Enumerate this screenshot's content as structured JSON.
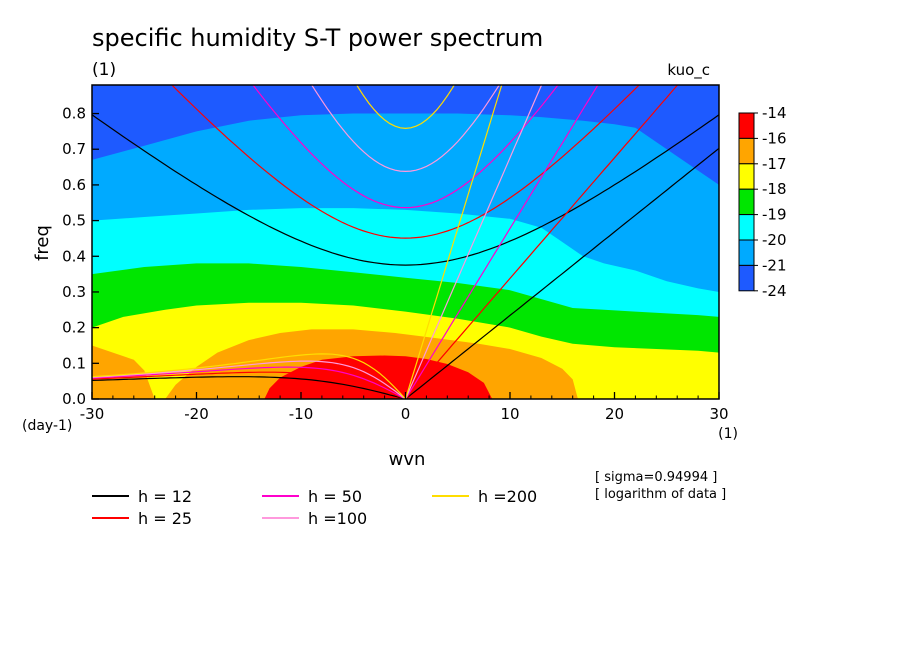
{
  "chart_data": {
    "type": "heatmap",
    "title": "specific humidity S-T power spectrum",
    "title_unit": "(1)",
    "top_right_label": "kuo_c",
    "xlabel": "wvn",
    "ylabel": "freq",
    "x_unit": "(1)",
    "y_unit": "(day-1)",
    "xlim": [
      -30,
      30
    ],
    "ylim": [
      0,
      0.88
    ],
    "x_ticks": [
      -30,
      -20,
      -10,
      0,
      10,
      20,
      30
    ],
    "x_tick_labels": [
      "-30",
      "-20",
      "-10",
      "0",
      "10",
      "20",
      "30"
    ],
    "y_ticks": [
      0,
      0.1,
      0.2,
      0.3,
      0.4,
      0.5,
      0.6,
      0.7,
      0.8
    ],
    "y_tick_labels": [
      "0.0",
      "0.1",
      "0.2",
      "0.3",
      "0.4",
      "0.5",
      "0.6",
      "0.7",
      "0.8"
    ],
    "colorbar": {
      "labels": [
        "-14",
        "-16",
        "-17",
        "-18",
        "-19",
        "-20",
        "-21",
        "-24"
      ],
      "colors": [
        "#ff0000",
        "#ffa500",
        "#ffff00",
        "#00e600",
        "#00ffff",
        "#00aaff",
        "#1e5aff"
      ]
    },
    "contour_bands": [
      {
        "level": "-24 to -21",
        "color": "#1e5aff",
        "upper_boundary": []
      },
      {
        "level": "-21 to -20",
        "color": "#00aaff",
        "upper_boundary": [
          [
            -30,
            0.67
          ],
          [
            -25,
            0.71
          ],
          [
            -20,
            0.75
          ],
          [
            -15,
            0.78
          ],
          [
            -10,
            0.795
          ],
          [
            -5,
            0.8
          ],
          [
            0,
            0.8
          ],
          [
            5,
            0.8
          ],
          [
            10,
            0.795
          ],
          [
            13,
            0.79
          ],
          [
            17,
            0.78
          ],
          [
            20,
            0.77
          ],
          [
            22,
            0.76
          ],
          [
            25,
            0.7
          ],
          [
            28,
            0.64
          ],
          [
            30,
            0.6
          ]
        ]
      },
      {
        "level": "-20 to -19",
        "color": "#00ffff",
        "upper_boundary": [
          [
            -30,
            0.5
          ],
          [
            -25,
            0.51
          ],
          [
            -20,
            0.52
          ],
          [
            -15,
            0.53
          ],
          [
            -10,
            0.535
          ],
          [
            -5,
            0.535
          ],
          [
            0,
            0.53
          ],
          [
            5,
            0.52
          ],
          [
            10,
            0.505
          ],
          [
            13,
            0.48
          ],
          [
            15,
            0.44
          ],
          [
            17,
            0.4
          ],
          [
            19,
            0.38
          ],
          [
            22,
            0.36
          ],
          [
            25,
            0.33
          ],
          [
            28,
            0.31
          ],
          [
            30,
            0.3
          ]
        ]
      },
      {
        "level": "-19 to -18",
        "color": "#00e600",
        "upper_boundary": [
          [
            -30,
            0.35
          ],
          [
            -25,
            0.37
          ],
          [
            -20,
            0.38
          ],
          [
            -15,
            0.38
          ],
          [
            -10,
            0.37
          ],
          [
            -5,
            0.355
          ],
          [
            0,
            0.34
          ],
          [
            5,
            0.325
          ],
          [
            10,
            0.305
          ],
          [
            13,
            0.28
          ],
          [
            16,
            0.255
          ],
          [
            19,
            0.25
          ],
          [
            22,
            0.245
          ],
          [
            25,
            0.24
          ],
          [
            28,
            0.235
          ],
          [
            30,
            0.23
          ]
        ]
      },
      {
        "level": "-18 to -17",
        "color": "#ffff00",
        "upper_boundary": [
          [
            -30,
            0.2
          ],
          [
            -27,
            0.23
          ],
          [
            -23,
            0.25
          ],
          [
            -20,
            0.262
          ],
          [
            -15,
            0.27
          ],
          [
            -10,
            0.27
          ],
          [
            -5,
            0.262
          ],
          [
            0,
            0.245
          ],
          [
            5,
            0.225
          ],
          [
            10,
            0.2
          ],
          [
            13,
            0.175
          ],
          [
            16,
            0.155
          ],
          [
            20,
            0.145
          ],
          [
            24,
            0.14
          ],
          [
            28,
            0.135
          ],
          [
            30,
            0.13
          ]
        ]
      },
      {
        "level": "-17 to -16",
        "color": "#ffa500",
        "upper_boundary": [
          [
            -30,
            0.15
          ],
          [
            -28,
            0.13
          ],
          [
            -26,
            0.11
          ],
          [
            -25,
            0.08
          ],
          [
            -24,
            0.0
          ],
          [
            -23,
            0.0
          ],
          [
            -22,
            0.04
          ],
          [
            -20,
            0.09
          ],
          [
            -18,
            0.13
          ],
          [
            -15,
            0.165
          ],
          [
            -12,
            0.185
          ],
          [
            -9,
            0.195
          ],
          [
            -5,
            0.195
          ],
          [
            -1,
            0.185
          ],
          [
            3,
            0.17
          ],
          [
            7,
            0.155
          ],
          [
            10,
            0.14
          ],
          [
            13,
            0.115
          ],
          [
            15,
            0.085
          ],
          [
            16,
            0.055
          ],
          [
            16.5,
            0.0
          ]
        ]
      },
      {
        "level": "-16 to -14",
        "color": "#ff0000",
        "upper_boundary": [
          [
            -13.5,
            0.0
          ],
          [
            -13,
            0.03
          ],
          [
            -12,
            0.06
          ],
          [
            -10,
            0.09
          ],
          [
            -8,
            0.11
          ],
          [
            -5,
            0.12
          ],
          [
            -2,
            0.122
          ],
          [
            0,
            0.12
          ],
          [
            2,
            0.112
          ],
          [
            4,
            0.098
          ],
          [
            6,
            0.075
          ],
          [
            7.5,
            0.045
          ],
          [
            8.3,
            0.0
          ]
        ]
      }
    ],
    "series": [
      {
        "name": "h = 12",
        "color": "#000000",
        "equivalent_depth": 12
      },
      {
        "name": "h = 25",
        "color": "#ff0000",
        "equivalent_depth": 25
      },
      {
        "name": "h = 50",
        "color": "#ff00cc",
        "equivalent_depth": 50
      },
      {
        "name": "h =100",
        "color": "#ff99dd",
        "equivalent_depth": 100
      },
      {
        "name": "h =200",
        "color": "#ffdd00",
        "equivalent_depth": 200
      }
    ],
    "notes": [
      "[ sigma=0.94994 ]",
      "[ logarithm of data ]"
    ],
    "legend_position": "bottom",
    "grid": false
  }
}
